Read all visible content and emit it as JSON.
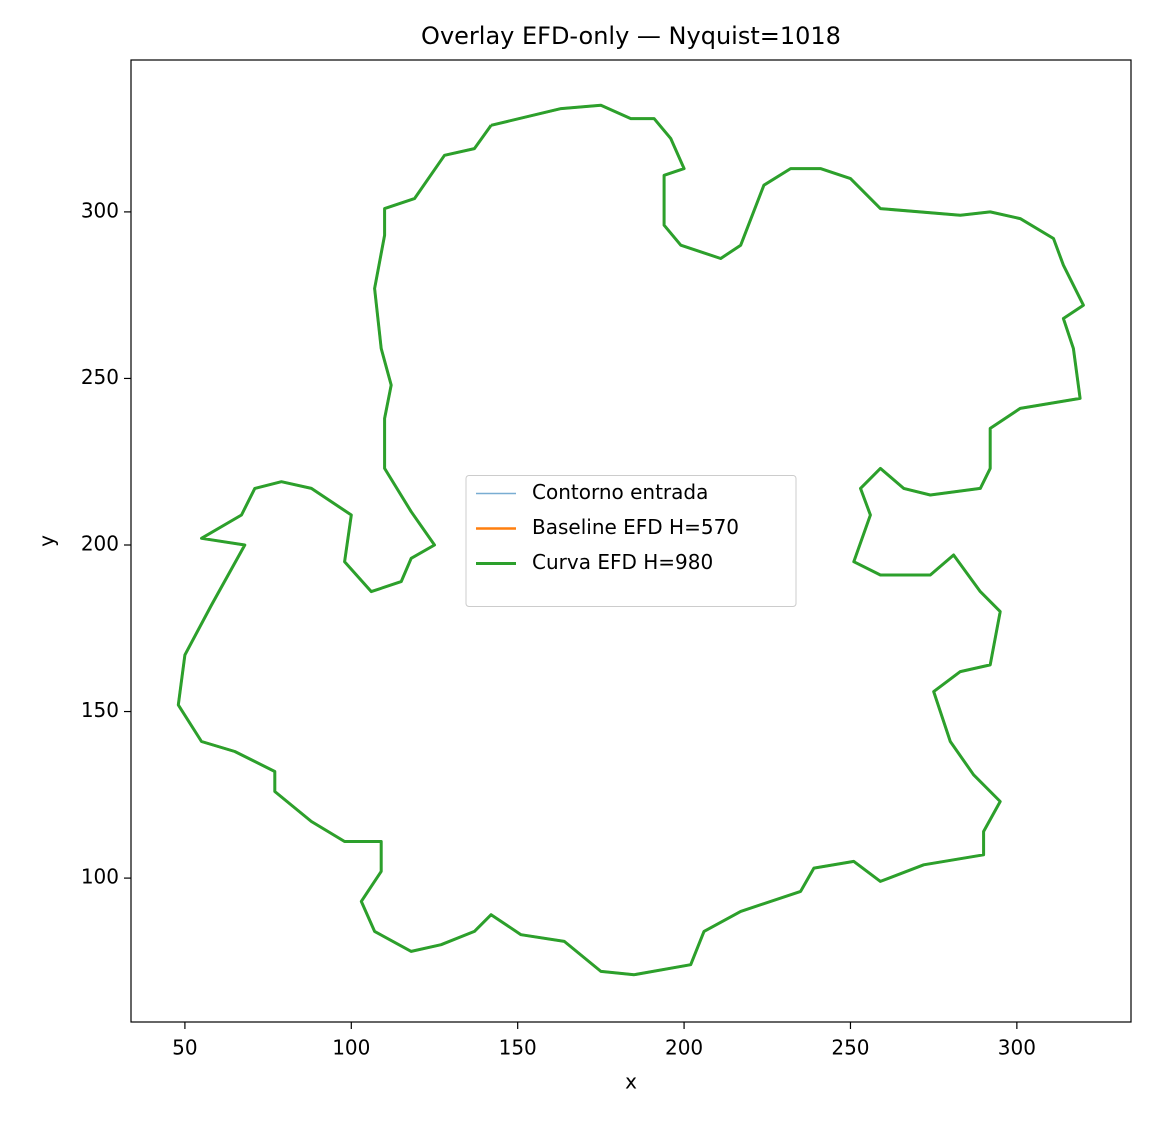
{
  "chart_data": {
    "type": "line",
    "title": "Overlay EFD-only — Nyquist=1018",
    "xlabel": "x",
    "ylabel": "y",
    "x": [
      142,
      163,
      175,
      184,
      191,
      196,
      200,
      194,
      194,
      199,
      211,
      217,
      224,
      232,
      241,
      250,
      259,
      283,
      292,
      301,
      311,
      314,
      320,
      314,
      317,
      319,
      301,
      292,
      292,
      289,
      274,
      266,
      259,
      253,
      256,
      251,
      259,
      274,
      281,
      289,
      295,
      292,
      283,
      275,
      280,
      287,
      295,
      290,
      290,
      272,
      259,
      251,
      239,
      235,
      217,
      206,
      202,
      185,
      175,
      164,
      151,
      142,
      137,
      127,
      118,
      107,
      103,
      109,
      109,
      98,
      88,
      77,
      77,
      65,
      55,
      48,
      50,
      58,
      68,
      55,
      67,
      71,
      79,
      88,
      100,
      98,
      106,
      115,
      118,
      125,
      118,
      110,
      110,
      112,
      109,
      107,
      110,
      110,
      119,
      128,
      137,
      142
    ],
    "series": [
      {
        "name": "Contorno entrada",
        "color": "#1f77b4",
        "values": [
          326,
          331,
          332,
          328,
          328,
          322,
          313,
          311,
          296,
          290,
          286,
          290,
          308,
          313,
          313,
          310,
          301,
          299,
          300,
          298,
          292,
          284,
          272,
          268,
          259,
          244,
          241,
          235,
          223,
          217,
          215,
          217,
          223,
          217,
          209,
          195,
          191,
          191,
          197,
          186,
          180,
          164,
          162,
          156,
          141,
          131,
          123,
          114,
          107,
          104,
          99,
          105,
          103,
          96,
          90,
          84,
          74,
          71,
          72,
          81,
          83,
          89,
          84,
          80,
          78,
          84,
          93,
          102,
          111,
          111,
          117,
          126,
          132,
          138,
          141,
          152,
          167,
          182,
          200,
          202,
          209,
          217,
          219,
          217,
          209,
          195,
          186,
          189,
          196,
          200,
          210,
          223,
          238,
          248,
          259,
          277,
          293,
          301,
          304,
          317,
          319,
          326
        ]
      },
      {
        "name": "Baseline EFD H=570",
        "color": "#ff7f0e",
        "values": [
          326,
          331,
          332,
          328,
          328,
          322,
          313,
          311,
          296,
          290,
          286,
          290,
          308,
          313,
          313,
          310,
          301,
          299,
          300,
          298,
          292,
          284,
          272,
          268,
          259,
          244,
          241,
          235,
          223,
          217,
          215,
          217,
          223,
          217,
          209,
          195,
          191,
          191,
          197,
          186,
          180,
          164,
          162,
          156,
          141,
          131,
          123,
          114,
          107,
          104,
          99,
          105,
          103,
          96,
          90,
          84,
          74,
          71,
          72,
          81,
          83,
          89,
          84,
          80,
          78,
          84,
          93,
          102,
          111,
          111,
          117,
          126,
          132,
          138,
          141,
          152,
          167,
          182,
          200,
          202,
          209,
          217,
          219,
          217,
          209,
          195,
          186,
          189,
          196,
          200,
          210,
          223,
          238,
          248,
          259,
          277,
          293,
          301,
          304,
          317,
          319,
          326
        ]
      },
      {
        "name": "Curva EFD H=980",
        "color": "#2ca02c",
        "values": [
          326,
          331,
          332,
          328,
          328,
          322,
          313,
          311,
          296,
          290,
          286,
          290,
          308,
          313,
          313,
          310,
          301,
          299,
          300,
          298,
          292,
          284,
          272,
          268,
          259,
          244,
          241,
          235,
          223,
          217,
          215,
          217,
          223,
          217,
          209,
          195,
          191,
          191,
          197,
          186,
          180,
          164,
          162,
          156,
          141,
          131,
          123,
          114,
          107,
          104,
          99,
          105,
          103,
          96,
          90,
          84,
          74,
          71,
          72,
          81,
          83,
          89,
          84,
          80,
          78,
          84,
          93,
          102,
          111,
          111,
          117,
          126,
          132,
          138,
          141,
          152,
          167,
          182,
          200,
          202,
          209,
          217,
          219,
          217,
          209,
          195,
          186,
          189,
          196,
          200,
          210,
          223,
          238,
          248,
          259,
          277,
          293,
          301,
          304,
          317,
          319,
          326
        ]
      }
    ],
    "xlim": [
      33.8,
      334.3
    ],
    "ylim": [
      56.8,
      345.6
    ],
    "xticks": [
      50,
      100,
      150,
      200,
      250,
      300
    ],
    "yticks": [
      100,
      150,
      200,
      250,
      300
    ],
    "grid": false,
    "legend": "center"
  }
}
